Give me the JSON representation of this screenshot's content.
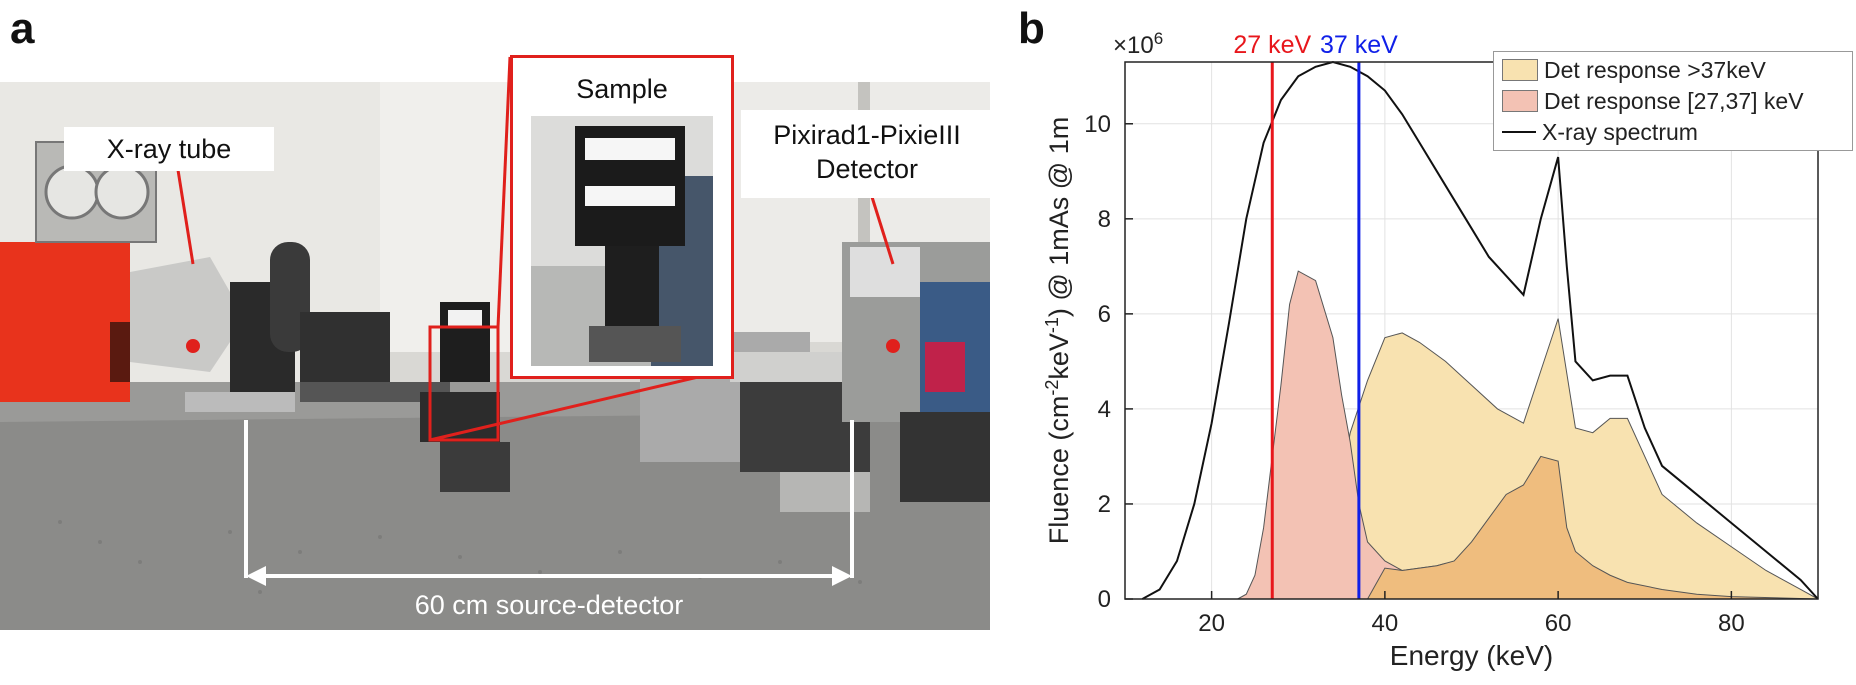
{
  "panel_a": {
    "label": "a",
    "callouts": {
      "xray_tube": "X-ray tube",
      "sample": "Sample",
      "detector_line1": "Pixirad1-PixieIII",
      "detector_line2": "Detector",
      "distance": "60 cm source-detector"
    },
    "colors": {
      "accent_red": "#e0201c",
      "arrow_white": "#ffffff"
    }
  },
  "panel_b": {
    "label": "b"
  },
  "chart_data": {
    "type": "area",
    "xlabel": "Energy (keV)",
    "ylabel_parts": [
      "Fluence (cm",
      "-2",
      "keV",
      "-1",
      ") @ 1mAs @ 1m"
    ],
    "y_multiplier_base": "×10",
    "y_multiplier_exp": "6",
    "xlim": [
      10,
      90
    ],
    "ylim": [
      0,
      11.3
    ],
    "xticks": [
      20,
      40,
      60,
      80
    ],
    "yticks": [
      0,
      2,
      4,
      6,
      8,
      10
    ],
    "grid": true,
    "legend_position": "top-right",
    "vlines": [
      {
        "x": 27,
        "label": "27 keV",
        "color": "#e8171c"
      },
      {
        "x": 37,
        "label": "37 keV",
        "color": "#1020e8"
      }
    ],
    "series": [
      {
        "name": "Det response >37keV",
        "kind": "area",
        "fill": "#f8e2b0",
        "stroke": "#555555",
        "points": [
          [
            30,
            0
          ],
          [
            33,
            0.5
          ],
          [
            35,
            2.5
          ],
          [
            36,
            3.5
          ],
          [
            38,
            4.6
          ],
          [
            40,
            5.5
          ],
          [
            42,
            5.6
          ],
          [
            44,
            5.4
          ],
          [
            47,
            5.0
          ],
          [
            50,
            4.5
          ],
          [
            53,
            4.0
          ],
          [
            56,
            3.7
          ],
          [
            58,
            4.8
          ],
          [
            60,
            5.9
          ],
          [
            62,
            3.6
          ],
          [
            64,
            3.5
          ],
          [
            66,
            3.8
          ],
          [
            68,
            3.8
          ],
          [
            72,
            2.2
          ],
          [
            76,
            1.6
          ],
          [
            80,
            1.1
          ],
          [
            84,
            0.6
          ],
          [
            88,
            0.2
          ],
          [
            90,
            0
          ]
        ]
      },
      {
        "name": "Det response [27,37] keV",
        "kind": "area",
        "fill": "#f3c2b4",
        "stroke": "#555555",
        "points": [
          [
            23,
            0
          ],
          [
            24,
            0.1
          ],
          [
            25,
            0.5
          ],
          [
            26,
            1.5
          ],
          [
            27,
            3.0
          ],
          [
            28,
            4.5
          ],
          [
            29,
            6.2
          ],
          [
            30,
            6.9
          ],
          [
            32,
            6.7
          ],
          [
            34,
            5.5
          ],
          [
            35,
            4.3
          ],
          [
            36,
            3.3
          ],
          [
            37,
            2.0
          ],
          [
            38,
            1.2
          ],
          [
            40,
            0.8
          ],
          [
            42,
            0.6
          ],
          [
            44,
            0.65
          ],
          [
            46,
            0.7
          ],
          [
            47,
            0.75
          ],
          [
            48,
            0.7
          ],
          [
            50,
            0.55
          ],
          [
            52,
            0.4
          ],
          [
            55,
            0.28
          ],
          [
            58,
            0.18
          ],
          [
            62,
            0.1
          ],
          [
            66,
            0.05
          ],
          [
            70,
            0.02
          ],
          [
            90,
            0
          ]
        ]
      },
      {
        "name": "",
        "kind": "area",
        "fill": "#efbd7e",
        "stroke": "#555555",
        "points": [
          [
            38,
            0
          ],
          [
            40,
            0.65
          ],
          [
            42,
            0.6
          ],
          [
            44,
            0.65
          ],
          [
            46,
            0.7
          ],
          [
            48,
            0.8
          ],
          [
            50,
            1.2
          ],
          [
            52,
            1.7
          ],
          [
            54,
            2.2
          ],
          [
            56,
            2.4
          ],
          [
            58,
            3.0
          ],
          [
            60,
            2.9
          ],
          [
            61,
            1.5
          ],
          [
            62,
            1.0
          ],
          [
            64,
            0.7
          ],
          [
            66,
            0.5
          ],
          [
            68,
            0.35
          ],
          [
            72,
            0.2
          ],
          [
            76,
            0.1
          ],
          [
            80,
            0.05
          ],
          [
            90,
            0
          ]
        ]
      },
      {
        "name": "X-ray spectrum",
        "kind": "line",
        "stroke": "#111111",
        "points": [
          [
            12,
            0
          ],
          [
            14,
            0.2
          ],
          [
            16,
            0.8
          ],
          [
            18,
            2.0
          ],
          [
            20,
            3.7
          ],
          [
            22,
            5.8
          ],
          [
            24,
            8.0
          ],
          [
            26,
            9.6
          ],
          [
            28,
            10.5
          ],
          [
            30,
            11.0
          ],
          [
            32,
            11.2
          ],
          [
            34,
            11.3
          ],
          [
            36,
            11.2
          ],
          [
            38,
            11.0
          ],
          [
            40,
            10.7
          ],
          [
            42,
            10.2
          ],
          [
            44,
            9.6
          ],
          [
            46,
            9.0
          ],
          [
            48,
            8.4
          ],
          [
            50,
            7.8
          ],
          [
            52,
            7.2
          ],
          [
            54,
            6.8
          ],
          [
            56,
            6.4
          ],
          [
            58,
            8.0
          ],
          [
            60,
            9.3
          ],
          [
            61,
            7.0
          ],
          [
            62,
            5.0
          ],
          [
            64,
            4.6
          ],
          [
            66,
            4.7
          ],
          [
            68,
            4.7
          ],
          [
            70,
            3.6
          ],
          [
            72,
            2.8
          ],
          [
            76,
            2.2
          ],
          [
            80,
            1.6
          ],
          [
            84,
            1.0
          ],
          [
            88,
            0.4
          ],
          [
            90,
            0
          ]
        ]
      }
    ]
  }
}
